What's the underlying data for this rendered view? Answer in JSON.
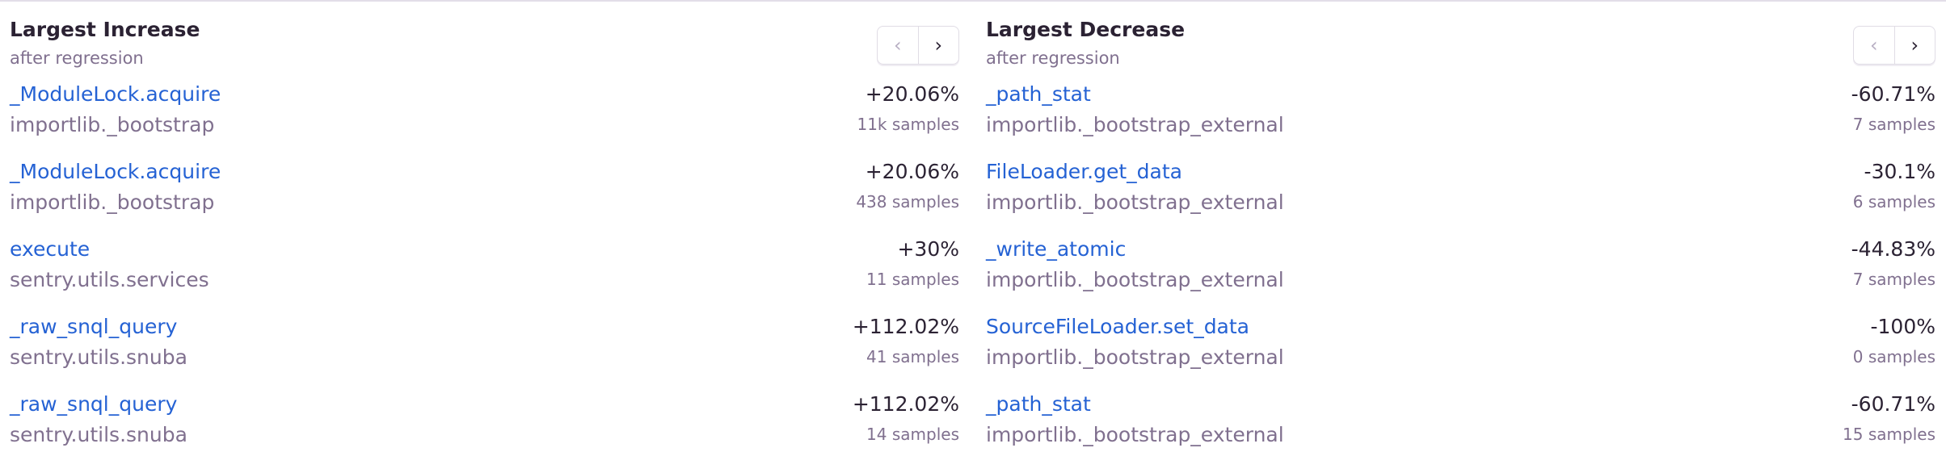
{
  "increase": {
    "title": "Largest Increase",
    "subtitle": "after regression",
    "prev_icon": "chevron-left-icon",
    "next_icon": "chevron-right-icon",
    "rows": [
      {
        "function": "_ModuleLock.acquire",
        "package": "importlib._bootstrap",
        "change": "+20.06%",
        "samples": "11k samples"
      },
      {
        "function": "_ModuleLock.acquire",
        "package": "importlib._bootstrap",
        "change": "+20.06%",
        "samples": "438 samples"
      },
      {
        "function": "execute",
        "package": "sentry.utils.services",
        "change": "+30%",
        "samples": "11 samples"
      },
      {
        "function": "_raw_snql_query",
        "package": "sentry.utils.snuba",
        "change": "+112.02%",
        "samples": "41 samples"
      },
      {
        "function": "_raw_snql_query",
        "package": "sentry.utils.snuba",
        "change": "+112.02%",
        "samples": "14 samples"
      }
    ]
  },
  "decrease": {
    "title": "Largest Decrease",
    "subtitle": "after regression",
    "prev_icon": "chevron-left-icon",
    "next_icon": "chevron-right-icon",
    "rows": [
      {
        "function": "_path_stat",
        "package": "importlib._bootstrap_external",
        "change": "-60.71%",
        "samples": "7 samples"
      },
      {
        "function": "FileLoader.get_data",
        "package": "importlib._bootstrap_external",
        "change": "-30.1%",
        "samples": "6 samples"
      },
      {
        "function": "_write_atomic",
        "package": "importlib._bootstrap_external",
        "change": "-44.83%",
        "samples": "7 samples"
      },
      {
        "function": "SourceFileLoader.set_data",
        "package": "importlib._bootstrap_external",
        "change": "-100%",
        "samples": "0 samples"
      },
      {
        "function": "_path_stat",
        "package": "importlib._bootstrap_external",
        "change": "-60.71%",
        "samples": "15 samples"
      }
    ]
  },
  "colors": {
    "link": "#2562d4",
    "text": "#2b2233",
    "muted": "#80708f"
  }
}
